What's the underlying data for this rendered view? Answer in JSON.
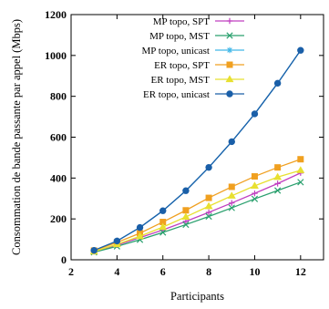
{
  "chart_data": {
    "type": "line",
    "xlabel": "Participants",
    "ylabel": "Consommation de bande passante par appel (Mbps)",
    "xlim": [
      2,
      13
    ],
    "ylim": [
      0,
      1200
    ],
    "xticks": [
      2,
      4,
      6,
      8,
      10,
      12
    ],
    "yticks": [
      0,
      200,
      400,
      600,
      800,
      1000,
      1200
    ],
    "grid": false,
    "legend_position": "top-left",
    "x": [
      3,
      4,
      5,
      6,
      7,
      8,
      9,
      10,
      11,
      12
    ],
    "series": [
      {
        "name": "MP topo, SPT",
        "color": "#c040c0",
        "marker": "plus",
        "values": [
          40,
          72,
          108,
          146,
          188,
          232,
          278,
          325,
          373,
          425
        ]
      },
      {
        "name": "MP topo, MST",
        "color": "#2aa06e",
        "marker": "cross",
        "values": [
          37,
          66,
          98,
          134,
          172,
          212,
          254,
          298,
          339,
          380
        ]
      },
      {
        "name": "MP topo, unicast",
        "color": "#41b7e8",
        "marker": "star",
        "values": [
          46,
          92,
          158,
          240,
          338,
          452,
          578,
          714,
          864,
          1025
        ]
      },
      {
        "name": "ER topo, SPT",
        "color": "#f0a020",
        "marker": "square",
        "values": [
          45,
          85,
          130,
          185,
          242,
          303,
          357,
          408,
          452,
          492
        ]
      },
      {
        "name": "ER topo, MST",
        "color": "#e8e030",
        "marker": "triangle",
        "values": [
          40,
          76,
          115,
          160,
          210,
          262,
          313,
          362,
          405,
          438
        ]
      },
      {
        "name": "ER topo, unicast",
        "color": "#1a5fa8",
        "marker": "circle",
        "values": [
          46,
          92,
          158,
          240,
          338,
          452,
          578,
          714,
          864,
          1025
        ]
      }
    ]
  }
}
